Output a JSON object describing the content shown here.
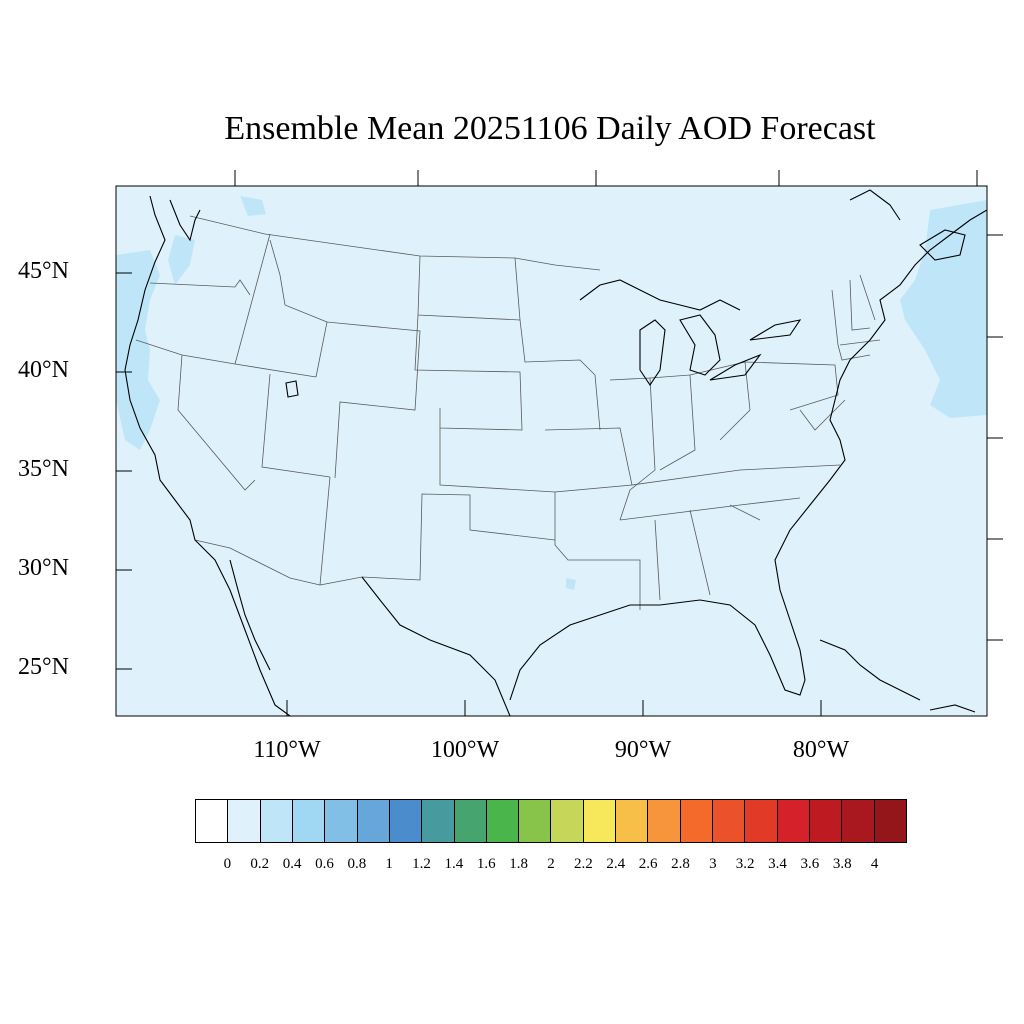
{
  "title": "Ensemble Mean 20251106 Daily AOD Forecast",
  "map": {
    "region": "Contiguous United States",
    "background_color": "#dff2fb",
    "high_aod_color": "#bfe6f8",
    "coastline_color": "#000000",
    "state_border_color": "#5a5a5a",
    "lat_labels": [
      "45°N",
      "40°N",
      "35°N",
      "30°N",
      "25°N"
    ],
    "lon_labels": [
      "110°W",
      "100°W",
      "90°W",
      "80°W"
    ]
  },
  "colorbar": {
    "colors": [
      "#ffffff",
      "#dff2fb",
      "#bfe6f8",
      "#a0d8f4",
      "#82bfe6",
      "#66a6db",
      "#4a8ccc",
      "#479a9e",
      "#46a56e",
      "#4ab54a",
      "#88c44a",
      "#c6d658",
      "#f7e75a",
      "#f7be48",
      "#f6953b",
      "#f46a2b",
      "#ec5229",
      "#e13b27",
      "#d5222a",
      "#be1a22",
      "#a8181e",
      "#94161b"
    ],
    "labels": [
      "0",
      "0.2",
      "0.4",
      "0.6",
      "0.8",
      "1",
      "1.2",
      "1.4",
      "1.6",
      "1.8",
      "2",
      "2.2",
      "2.4",
      "2.6",
      "2.8",
      "3",
      "3.2",
      "3.4",
      "3.6",
      "3.8",
      "4"
    ]
  }
}
